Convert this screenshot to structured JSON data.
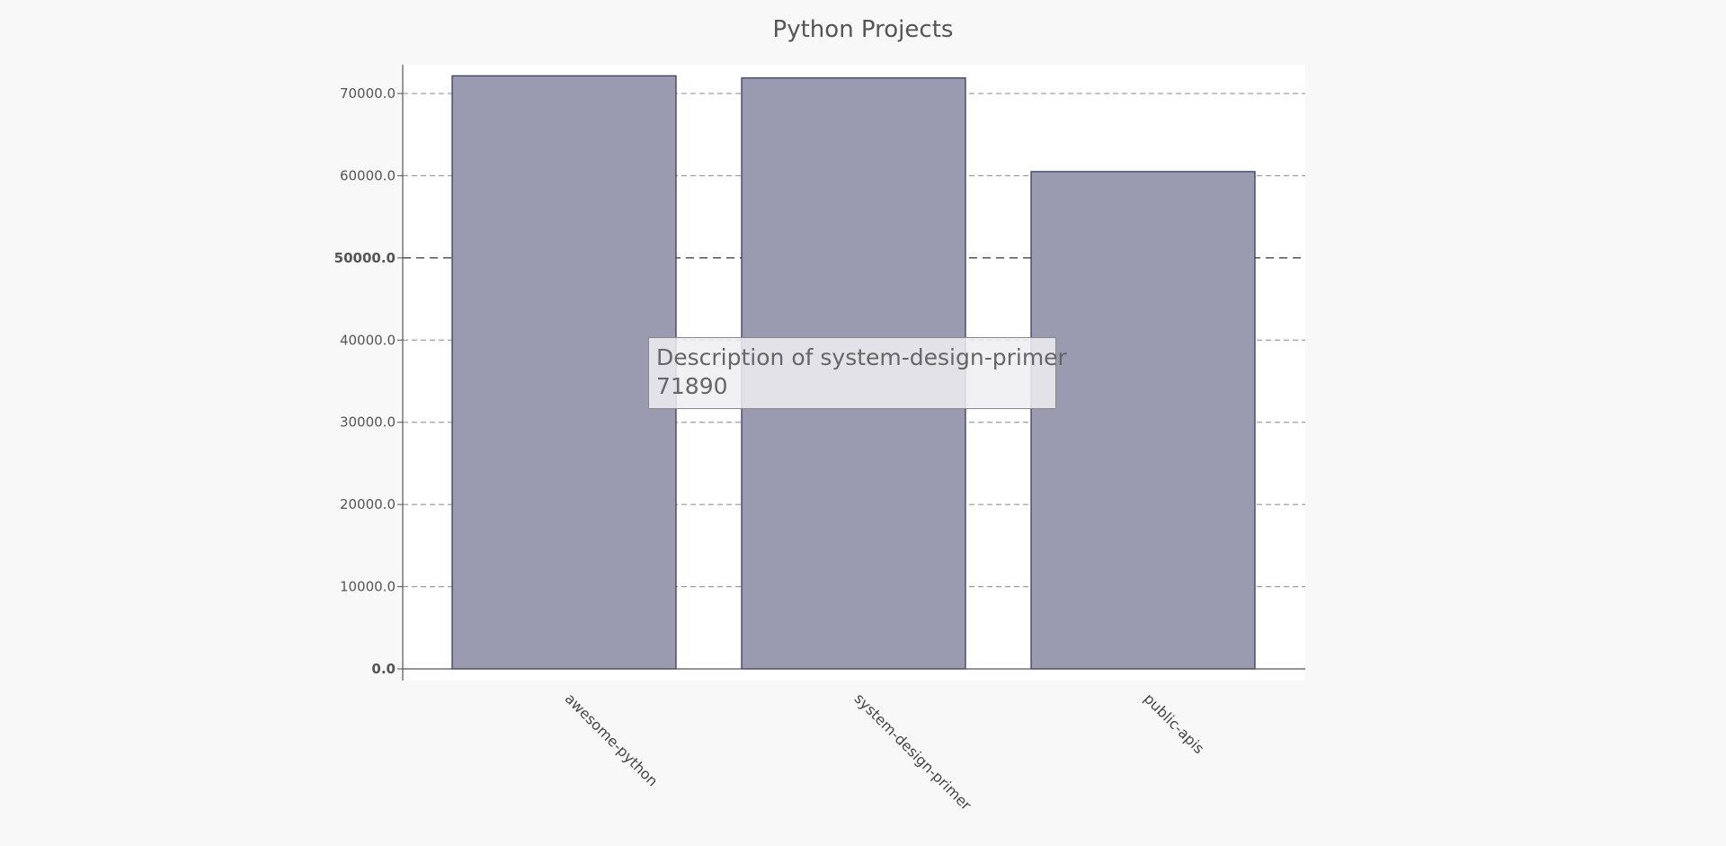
{
  "chart_data": {
    "type": "bar",
    "title": "Python Projects",
    "categories": [
      "awesome-python",
      "system-design-primer",
      "public-apis"
    ],
    "values": [
      72150,
      71890,
      60500
    ],
    "ylim": [
      0,
      73500
    ],
    "yticks": [
      0,
      10000,
      20000,
      30000,
      40000,
      50000,
      60000,
      70000
    ],
    "ytick_labels": [
      "0.0",
      "10000.0",
      "20000.0",
      "30000.0",
      "40000.0",
      "50000.0",
      "60000.0",
      "70000.0"
    ],
    "major_ytick": 50000,
    "grid": true,
    "bar_fill": "#9a9ab0",
    "bar_stroke": "#3c3c6a",
    "title_color": "#555555",
    "tick_color": "#555555"
  },
  "tooltip": {
    "label": "Description of system-design-primer",
    "value": "71890"
  }
}
